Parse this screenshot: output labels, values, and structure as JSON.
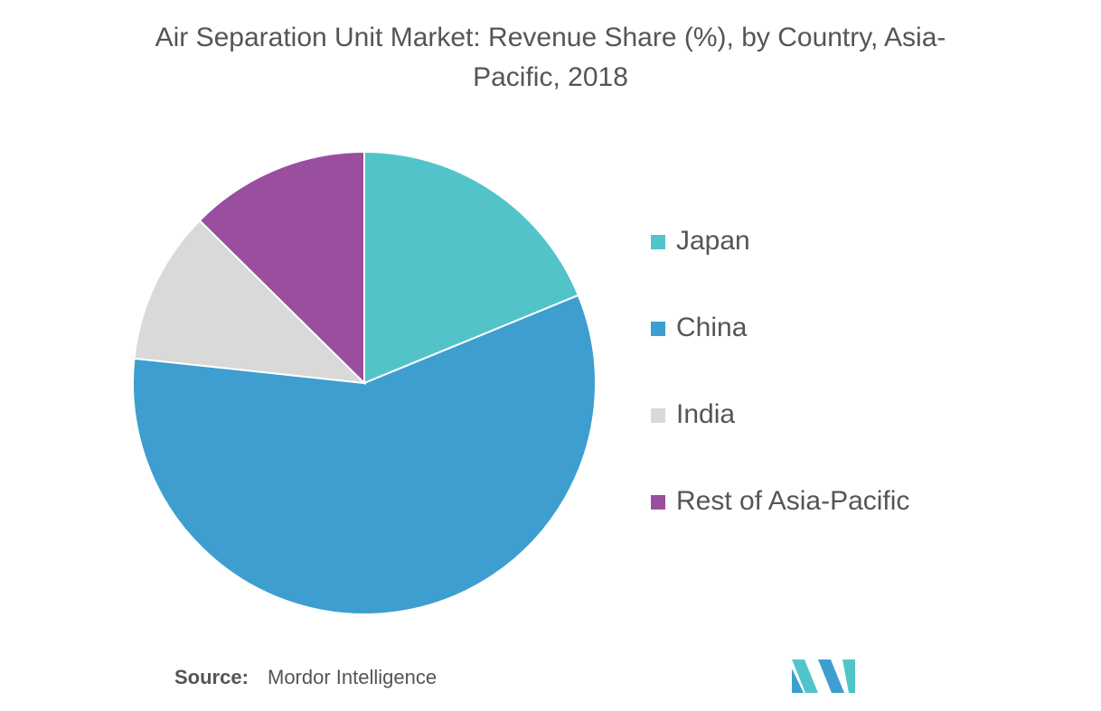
{
  "chart_data": {
    "type": "pie",
    "title": "Air Separation Unit Market: Revenue Share (%), by Country, Asia-Pacific, 2018",
    "categories": [
      "Japan",
      "China",
      "India",
      "Rest of Asia-Pacific"
    ],
    "values": [
      18.8,
      57.9,
      10.7,
      12.6
    ],
    "colors": [
      "#52c4c9",
      "#3e9ecf",
      "#d9d9d9",
      "#9a4f9e"
    ],
    "legend": "right"
  },
  "source": {
    "label": "Source:",
    "text": "Mordor Intelligence"
  }
}
